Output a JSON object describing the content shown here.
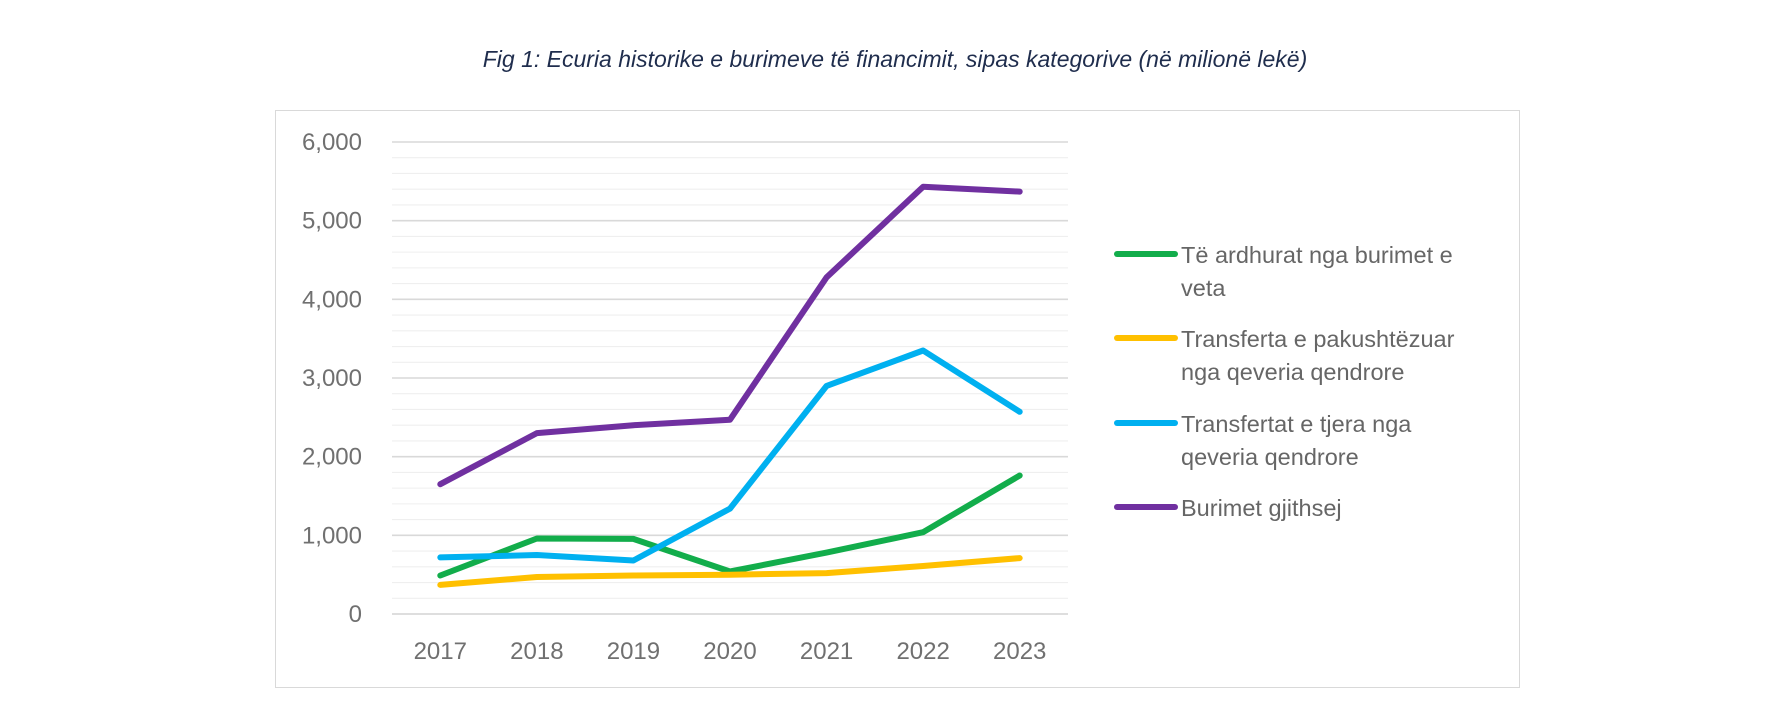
{
  "figure": {
    "title": "Fig 1: Ecuria historike e burimeve të financimit, sipas kategorive (në milionë lekë)"
  },
  "chart_data": {
    "type": "line",
    "title": "Fig 1: Ecuria historike e burimeve të financimit, sipas kategorive (në milionë lekë)",
    "xlabel": "",
    "ylabel": "",
    "categories": [
      "2017",
      "2018",
      "2019",
      "2020",
      "2021",
      "2022",
      "2023"
    ],
    "ylim": [
      0,
      6000
    ],
    "yticks": [
      0,
      1000,
      2000,
      3000,
      4000,
      5000,
      6000
    ],
    "ytick_labels": [
      "0",
      "1,000",
      "2,000",
      "3,000",
      "4,000",
      "5,000",
      "6,000"
    ],
    "grid": true,
    "legend_position": "right",
    "series": [
      {
        "name": "Të ardhurat nga burimet e veta",
        "legend_lines": [
          "Të ardhurat nga burimet e",
          "veta"
        ],
        "color": "#12ad4b",
        "values": [
          490,
          960,
          955,
          540,
          780,
          1040,
          1760
        ]
      },
      {
        "name": "Transferta e pakushtëzuar nga qeveria qendrore",
        "legend_lines": [
          "Transferta e pakushtëzuar",
          "nga qeveria qendrore"
        ],
        "color": "#ffc000",
        "values": [
          370,
          470,
          490,
          500,
          520,
          610,
          710
        ]
      },
      {
        "name": "Transfertat e tjera nga qeveria qendrore",
        "legend_lines": [
          "Transfertat e tjera nga",
          "qeveria qendrore"
        ],
        "color": "#00b0f0",
        "values": [
          720,
          750,
          680,
          1340,
          2900,
          3350,
          2570
        ]
      },
      {
        "name": "Burimet gjithsej",
        "legend_lines": [
          "Burimet gjithsej"
        ],
        "color": "#7030a0",
        "values": [
          1650,
          2300,
          2400,
          2470,
          4280,
          5430,
          5370
        ]
      }
    ]
  }
}
